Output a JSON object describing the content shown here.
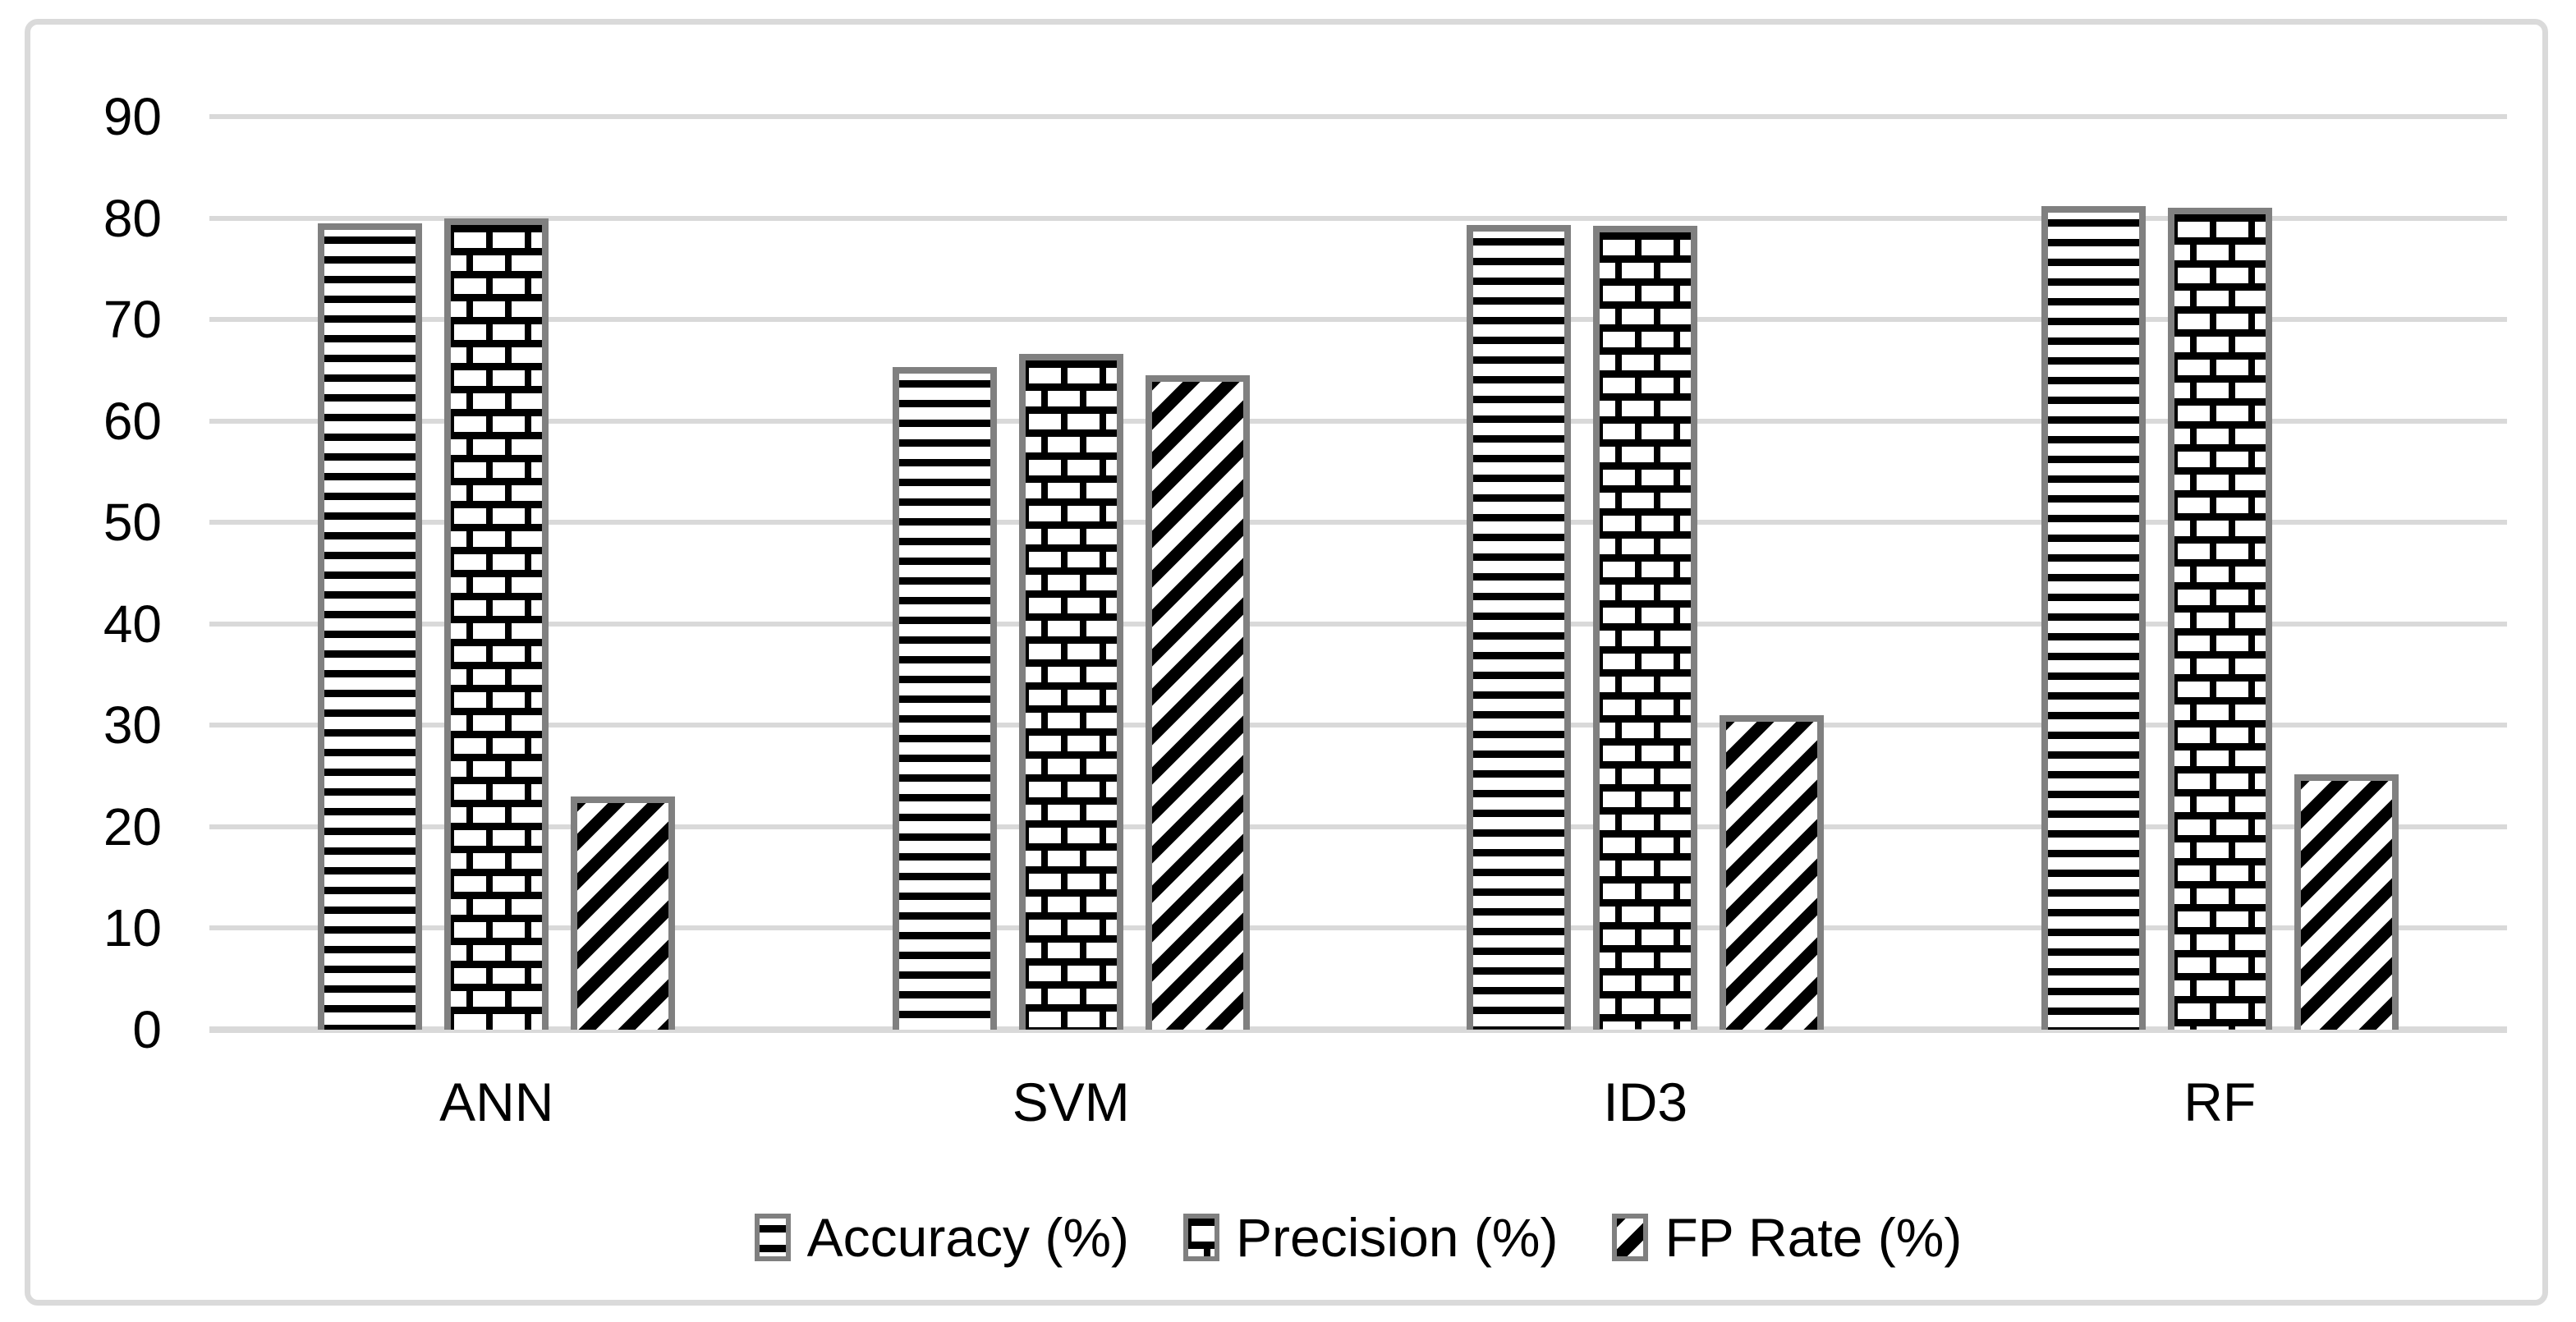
{
  "chart_data": {
    "type": "bar",
    "title": "",
    "categories": [
      "ANN",
      "SVM",
      "ID3",
      "RF"
    ],
    "series": [
      {
        "name": "Accuracy (%)",
        "pattern": "horizontal-lines",
        "values": [
          79.5,
          65.3,
          79.3,
          81.2
        ]
      },
      {
        "name": "Precision (%)",
        "pattern": "bricks",
        "values": [
          80.0,
          66.6,
          79.2,
          81.0
        ]
      },
      {
        "name": "FP Rate (%)",
        "pattern": "diagonal-stripes",
        "values": [
          23.0,
          64.5,
          31.0,
          25.2
        ]
      }
    ],
    "y_axis": {
      "min": 0,
      "max": 90,
      "step": 10,
      "ticks": [
        0,
        10,
        20,
        30,
        40,
        50,
        60,
        70,
        80,
        90
      ]
    },
    "x_axis": {
      "labels": [
        "ANN",
        "SVM",
        "ID3",
        "RF"
      ]
    },
    "legend": {
      "position": "bottom",
      "entries": [
        "Accuracy (%)",
        "Precision (%)",
        "FP Rate (%)"
      ]
    },
    "grid": true
  },
  "colors": {
    "background": "#ffffff",
    "frame_border": "#dadada",
    "gridline": "#d9d9d9",
    "bar_border": "#808080",
    "pattern_fill": "#000000",
    "pattern_background": "#ffffff",
    "text": "#000000"
  }
}
